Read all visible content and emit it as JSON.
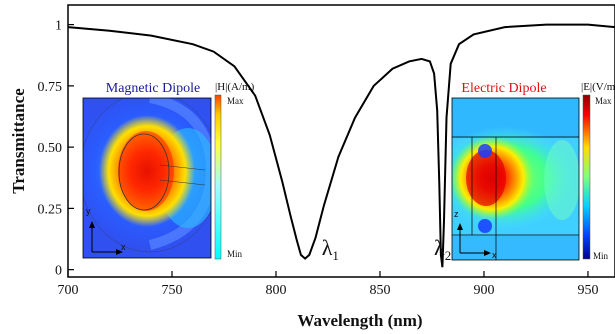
{
  "chart_data": {
    "type": "line",
    "xlabel": "Wavelength (nm)",
    "ylabel": "Transmittance",
    "xlim": [
      700,
      963
    ],
    "ylim": [
      -0.03,
      1.08
    ],
    "x_ticks": [
      "700",
      "750",
      "800",
      "850",
      "900",
      "950"
    ],
    "y_ticks": [
      "0",
      "0.25",
      "0.50",
      "0.75",
      "1"
    ],
    "grid": false,
    "series": [
      {
        "color": "#000000",
        "points": [
          [
            700,
            0.99
          ],
          [
            720,
            0.975
          ],
          [
            740,
            0.955
          ],
          [
            760,
            0.92
          ],
          [
            770,
            0.89
          ],
          [
            780,
            0.83
          ],
          [
            790,
            0.71
          ],
          [
            797,
            0.55
          ],
          [
            803,
            0.36
          ],
          [
            807,
            0.22
          ],
          [
            810,
            0.12
          ],
          [
            812,
            0.06
          ],
          [
            814,
            0.045
          ],
          [
            816,
            0.06
          ],
          [
            819,
            0.13
          ],
          [
            823,
            0.26
          ],
          [
            830,
            0.46
          ],
          [
            838,
            0.62
          ],
          [
            847,
            0.75
          ],
          [
            856,
            0.82
          ],
          [
            864,
            0.85
          ],
          [
            870,
            0.86
          ],
          [
            874,
            0.85
          ],
          [
            876,
            0.8
          ],
          [
            877.5,
            0.65
          ],
          [
            878.5,
            0.35
          ],
          [
            879.3,
            0.06
          ],
          [
            880,
            0.01
          ],
          [
            880.8,
            0.2
          ],
          [
            882,
            0.62
          ],
          [
            884,
            0.84
          ],
          [
            888,
            0.92
          ],
          [
            895,
            0.96
          ],
          [
            910,
            0.99
          ],
          [
            930,
            1.0
          ],
          [
            950,
            1.0
          ],
          [
            963,
            0.99
          ]
        ]
      }
    ],
    "annotations": [
      {
        "base": "λ",
        "sub": "1",
        "x": 822,
        "y": 0.06
      },
      {
        "base": "λ",
        "sub": "2",
        "x": 876,
        "y": 0.06
      }
    ]
  },
  "insets": {
    "magnetic": {
      "title": "Magnetic Dipole",
      "title_color": "#1a1aa0",
      "unit": "|H|(A/m)",
      "max_label": "Max",
      "min_label": "Min",
      "axis_y": "y",
      "axis_x": "x"
    },
    "electric": {
      "title": "Electric Dipole",
      "title_color": "#e01010",
      "unit": "|E|(V/m",
      "max_label": "Max",
      "min_label": "Min",
      "axis_y": "z",
      "axis_x": "x"
    }
  },
  "colors": {
    "frame": "#000000",
    "curve": "#000000",
    "field_max": "#cc0000",
    "field_min": "#2020c0"
  }
}
